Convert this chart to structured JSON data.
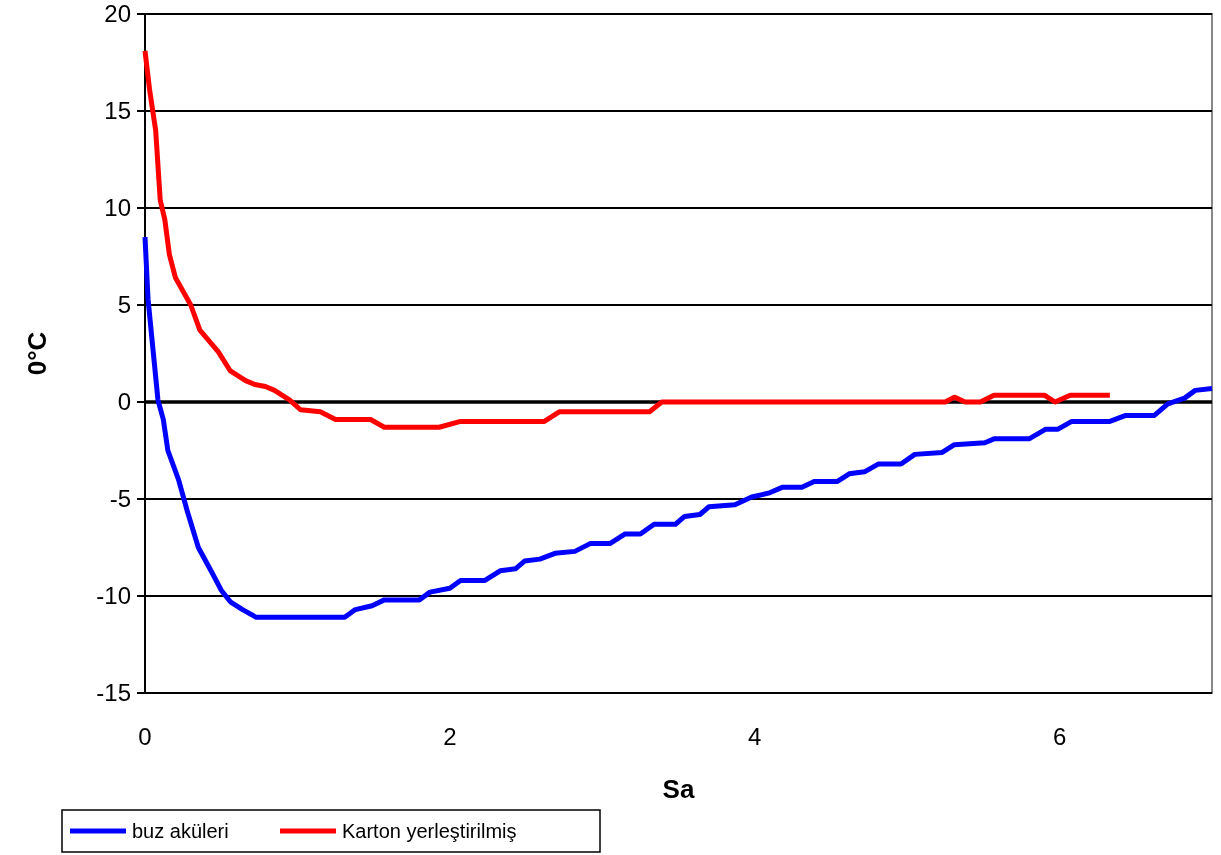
{
  "chart_data": {
    "type": "line",
    "xlabel": "Sa",
    "ylabel": "0°C",
    "xlim": [
      0,
      7
    ],
    "xticks": [
      0,
      2,
      4,
      6
    ],
    "ylim": [
      -15,
      20
    ],
    "yticks": [
      -15,
      -10,
      -5,
      0,
      5,
      10,
      15,
      20
    ],
    "grid": "y",
    "legend": "bottom left",
    "marker": "none",
    "line_style": "solid",
    "series": [
      {
        "name": "buz aküleri",
        "color": "#0000ff",
        "x": [
          0,
          0.02,
          0.05,
          0.085,
          0.12,
          0.15,
          0.22,
          0.28,
          0.35,
          0.44,
          0.5,
          0.56,
          0.64,
          0.73,
          1.31,
          1.38,
          1.49,
          1.57,
          1.8,
          1.87,
          2.0,
          2.07,
          2.23,
          2.33,
          2.43,
          2.49,
          2.59,
          2.69,
          2.82,
          2.92,
          3.05,
          3.15,
          3.25,
          3.34,
          3.48,
          3.54,
          3.64,
          3.7,
          3.87,
          3.98,
          4.09,
          4.18,
          4.31,
          4.39,
          4.54,
          4.62,
          4.72,
          4.81,
          4.96,
          5.05,
          5.23,
          5.31,
          5.51,
          5.57,
          5.8,
          5.91,
          5.99,
          6.08,
          6.33,
          6.43,
          6.62,
          6.71,
          6.82,
          6.89,
          7.0
        ],
        "values": [
          8.5,
          5.3,
          2.9,
          0.1,
          -0.9,
          -2.5,
          -4.0,
          -5.7,
          -7.5,
          -8.8,
          -9.7,
          -10.3,
          -10.7,
          -11.1,
          -11.1,
          -10.7,
          -10.5,
          -10.2,
          -10.2,
          -9.8,
          -9.6,
          -9.2,
          -9.2,
          -8.7,
          -8.6,
          -8.2,
          -8.1,
          -7.8,
          -7.7,
          -7.3,
          -7.3,
          -6.8,
          -6.8,
          -6.3,
          -6.3,
          -5.9,
          -5.8,
          -5.4,
          -5.3,
          -4.9,
          -4.7,
          -4.4,
          -4.4,
          -4.1,
          -4.1,
          -3.7,
          -3.6,
          -3.2,
          -3.2,
          -2.7,
          -2.6,
          -2.2,
          -2.1,
          -1.9,
          -1.9,
          -1.4,
          -1.4,
          -1.0,
          -1.0,
          -0.7,
          -0.7,
          -0.1,
          0.2,
          0.6,
          0.7
        ]
      },
      {
        "name": "Karton yerleştirilmiş",
        "color": "#ff0000",
        "x": [
          0,
          0.03,
          0.07,
          0.1,
          0.13,
          0.16,
          0.2,
          0.3,
          0.36,
          0.48,
          0.56,
          0.66,
          0.72,
          0.79,
          0.85,
          0.95,
          1.02,
          1.15,
          1.25,
          1.48,
          1.57,
          1.93,
          2.07,
          2.62,
          2.72,
          3.31,
          3.39,
          5.25,
          5.31,
          5.38,
          5.48,
          5.57,
          5.9,
          5.97,
          6.07,
          6.33
        ],
        "values": [
          18.1,
          16.1,
          14,
          10.4,
          9.4,
          7.6,
          6.4,
          5.0,
          3.7,
          2.6,
          1.6,
          1.1,
          0.9,
          0.8,
          0.6,
          0.1,
          -0.4,
          -0.5,
          -0.9,
          -0.9,
          -1.3,
          -1.3,
          -1.0,
          -1.0,
          -0.5,
          -0.5,
          0,
          0,
          0.25,
          0,
          0,
          0.35,
          0.35,
          0,
          0.35,
          0.35
        ]
      }
    ]
  }
}
